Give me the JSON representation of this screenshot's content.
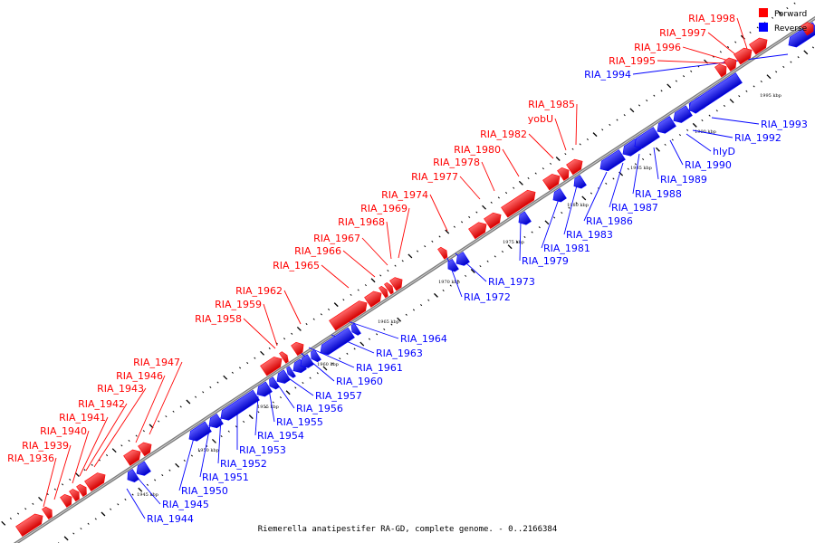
{
  "legend": {
    "forward_label": "Forward",
    "reverse_label": "Reverse",
    "forward_color": "#ff0000",
    "reverse_color": "#0000ff"
  },
  "caption": "Riemerella anatipestifer RA-GD, complete genome. - 0..2166384",
  "scale_labels": [
    "1945 kbp",
    "1950 kbp",
    "1955 kbp",
    "1960 kbp",
    "1965 kbp",
    "1970 kbp",
    "1975 kbp",
    "1980 kbp",
    "1985 kbp",
    "1990 kbp",
    "1995 kbp"
  ],
  "genes": [
    {
      "name": "RIA_1936",
      "strand": "forward"
    },
    {
      "name": "RIA_1939",
      "strand": "forward"
    },
    {
      "name": "RIA_1940",
      "strand": "forward"
    },
    {
      "name": "RIA_1941",
      "strand": "forward"
    },
    {
      "name": "RIA_1942",
      "strand": "forward"
    },
    {
      "name": "RIA_1943",
      "strand": "forward"
    },
    {
      "name": "RIA_1946",
      "strand": "forward"
    },
    {
      "name": "RIA_1947",
      "strand": "forward"
    },
    {
      "name": "RIA_1944",
      "strand": "reverse"
    },
    {
      "name": "RIA_1945",
      "strand": "reverse"
    },
    {
      "name": "RIA_1950",
      "strand": "reverse"
    },
    {
      "name": "RIA_1951",
      "strand": "reverse"
    },
    {
      "name": "RIA_1952",
      "strand": "reverse"
    },
    {
      "name": "RIA_1953",
      "strand": "reverse"
    },
    {
      "name": "RIA_1954",
      "strand": "reverse"
    },
    {
      "name": "RIA_1955",
      "strand": "reverse"
    },
    {
      "name": "RIA_1956",
      "strand": "reverse"
    },
    {
      "name": "RIA_1957",
      "strand": "reverse"
    },
    {
      "name": "RIA_1958",
      "strand": "forward"
    },
    {
      "name": "RIA_1959",
      "strand": "forward"
    },
    {
      "name": "RIA_1962",
      "strand": "forward"
    },
    {
      "name": "RIA_1960",
      "strand": "reverse"
    },
    {
      "name": "RIA_1961",
      "strand": "reverse"
    },
    {
      "name": "RIA_1963",
      "strand": "reverse"
    },
    {
      "name": "RIA_1964",
      "strand": "reverse"
    },
    {
      "name": "RIA_1965",
      "strand": "forward"
    },
    {
      "name": "RIA_1966",
      "strand": "forward"
    },
    {
      "name": "RIA_1967",
      "strand": "forward"
    },
    {
      "name": "RIA_1968",
      "strand": "forward"
    },
    {
      "name": "RIA_1969",
      "strand": "forward"
    },
    {
      "name": "RIA_1974",
      "strand": "forward"
    },
    {
      "name": "RIA_1972",
      "strand": "reverse"
    },
    {
      "name": "RIA_1973",
      "strand": "reverse"
    },
    {
      "name": "RIA_1977",
      "strand": "forward"
    },
    {
      "name": "RIA_1978",
      "strand": "forward"
    },
    {
      "name": "RIA_1980",
      "strand": "forward"
    },
    {
      "name": "RIA_1979",
      "strand": "reverse"
    },
    {
      "name": "RIA_1982",
      "strand": "forward"
    },
    {
      "name": "yobU",
      "strand": "forward"
    },
    {
      "name": "RIA_1985",
      "strand": "forward"
    },
    {
      "name": "RIA_1981",
      "strand": "reverse"
    },
    {
      "name": "RIA_1983",
      "strand": "reverse"
    },
    {
      "name": "RIA_1986",
      "strand": "reverse"
    },
    {
      "name": "RIA_1987",
      "strand": "reverse"
    },
    {
      "name": "RIA_1988",
      "strand": "reverse"
    },
    {
      "name": "RIA_1989",
      "strand": "reverse"
    },
    {
      "name": "RIA_1990",
      "strand": "reverse"
    },
    {
      "name": "hlyD",
      "strand": "reverse"
    },
    {
      "name": "RIA_1992",
      "strand": "reverse"
    },
    {
      "name": "RIA_1993",
      "strand": "reverse"
    },
    {
      "name": "RIA_1994",
      "strand": "reverse"
    },
    {
      "name": "RIA_1995",
      "strand": "forward"
    },
    {
      "name": "RIA_1996",
      "strand": "forward"
    },
    {
      "name": "RIA_1997",
      "strand": "forward"
    },
    {
      "name": "RIA_1998",
      "strand": "forward"
    }
  ]
}
